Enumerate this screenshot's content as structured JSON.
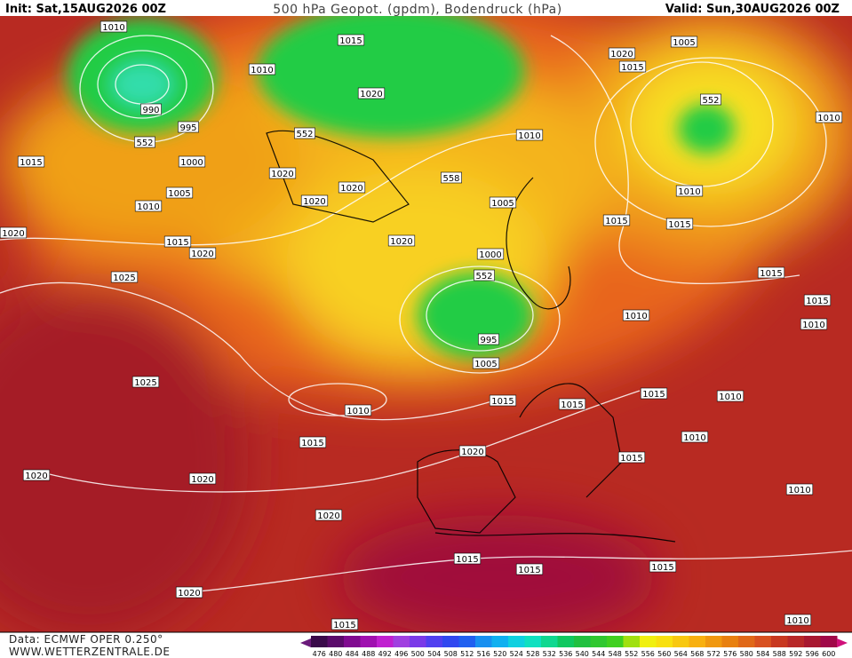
{
  "header": {
    "init": "Init: Sat,15AUG2026 00Z",
    "title": "500 hPa Geopot. (gpdm), Bodendruck (hPa)",
    "valid": "Valid: Sun,30AUG2026 00Z"
  },
  "footer": {
    "source": "Data: ECMWF OPER 0.250°",
    "website": "WWW.WETTERZENTRALE.DE"
  },
  "map": {
    "isobar_labels": [
      "1010",
      "1015",
      "1010",
      "1020",
      "1015",
      "1005",
      "552",
      "1010",
      "1020",
      "990",
      "995",
      "552",
      "552",
      "1015",
      "1000",
      "1010",
      "558",
      "1020",
      "1020",
      "1020",
      "1005",
      "1010",
      "1005",
      "1015",
      "1015",
      "1010",
      "1020",
      "1015",
      "1020",
      "1020",
      "1000",
      "552",
      "1025",
      "1015",
      "1015",
      "1010",
      "1010",
      "995",
      "1005",
      "1025",
      "1010",
      "1015",
      "1015",
      "1010",
      "1015",
      "1015",
      "1010",
      "1020",
      "1015",
      "1020",
      "1020",
      "1010",
      "1020",
      "1015",
      "1015",
      "1015",
      "1020",
      "1015",
      "1010"
    ]
  },
  "scale": {
    "labels": [
      476,
      480,
      484,
      488,
      492,
      496,
      500,
      504,
      508,
      512,
      516,
      520,
      524,
      528,
      532,
      536,
      540,
      544,
      548,
      552,
      556,
      560,
      564,
      568,
      572,
      576,
      580,
      584,
      588,
      592,
      596,
      600
    ]
  }
}
